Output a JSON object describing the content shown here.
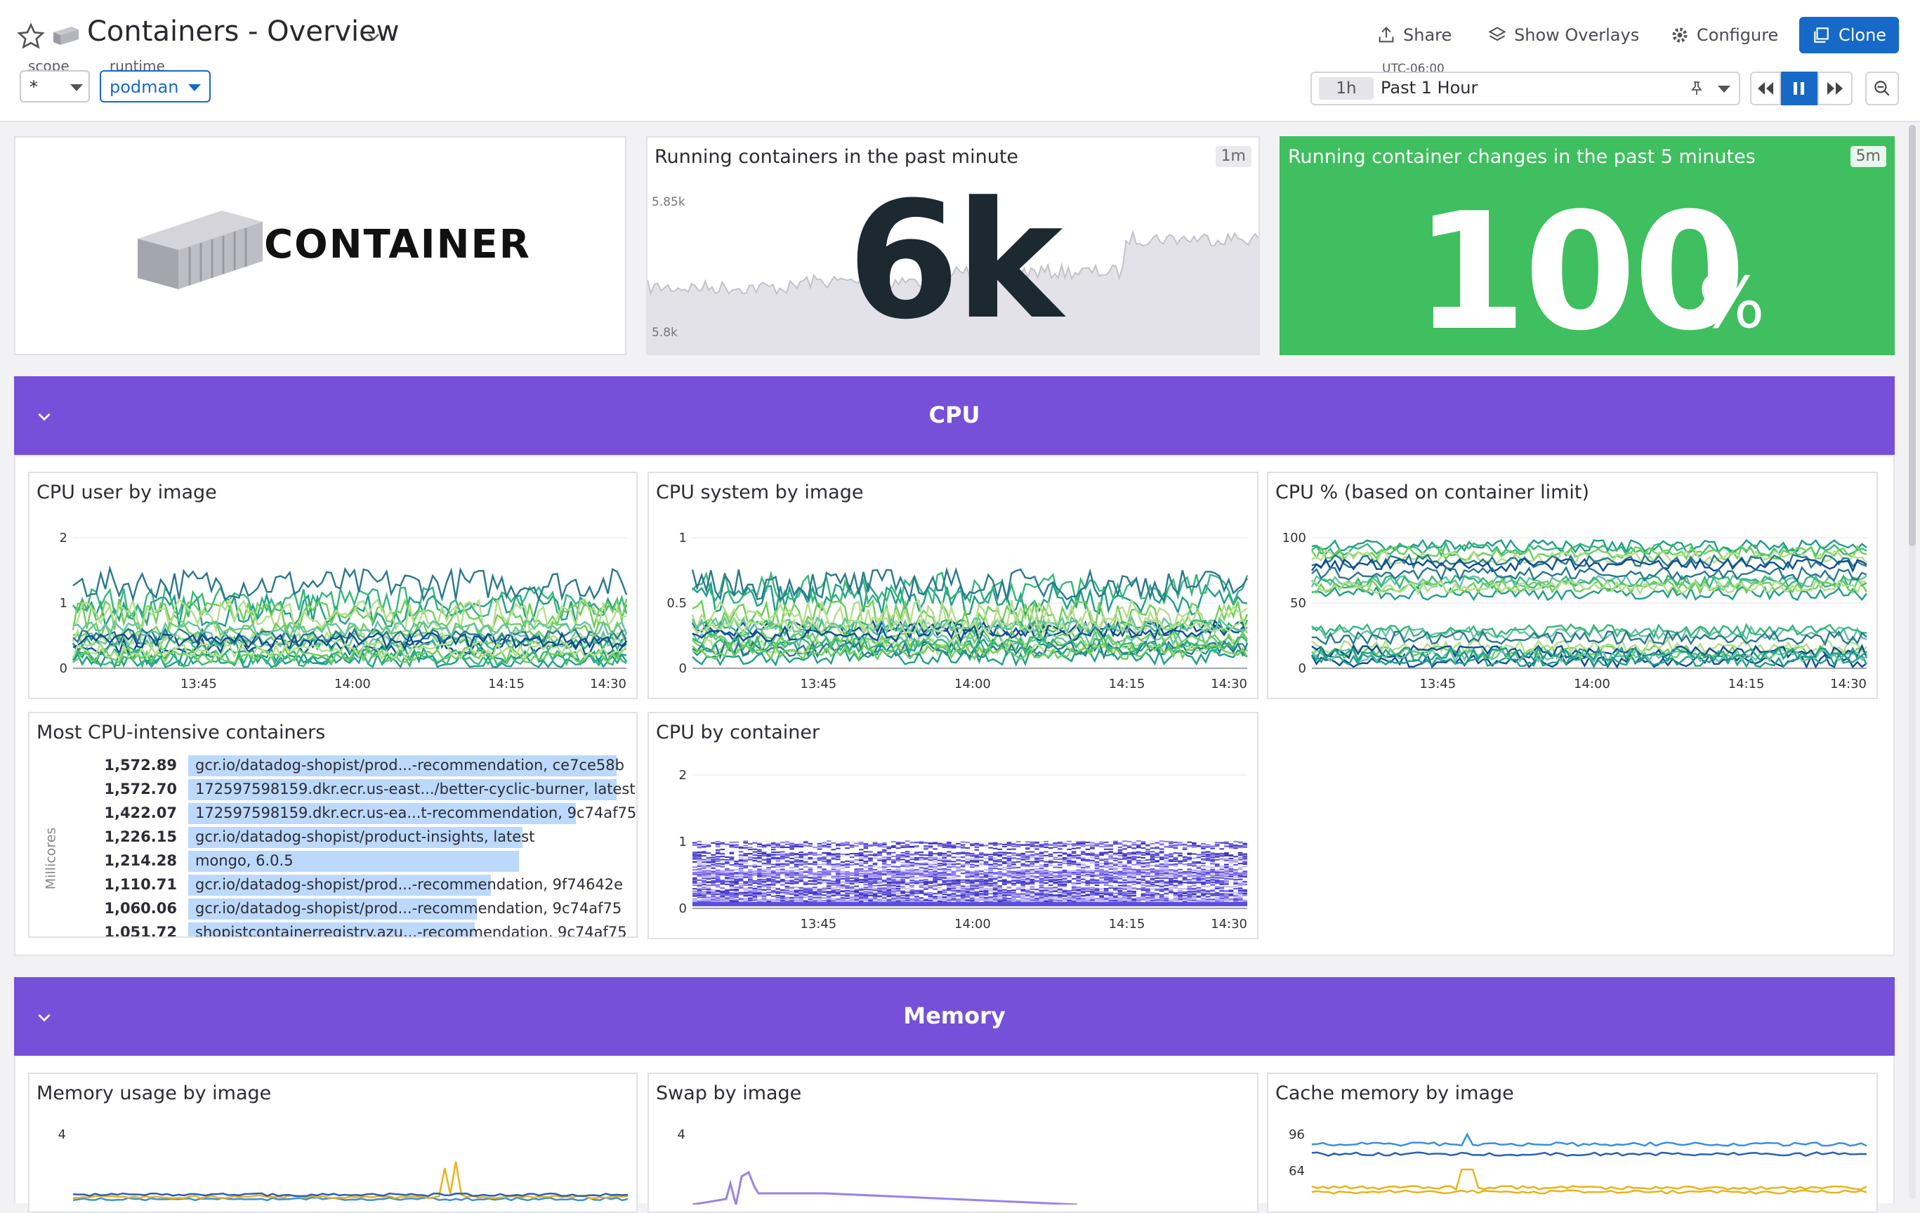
{
  "header": {
    "title": "Containers - Overview",
    "share_label": "Share",
    "overlays_label": "Show Overlays",
    "configure_label": "Configure",
    "clone_label": "Clone"
  },
  "template_vars": [
    {
      "name": "scope",
      "value": "*"
    },
    {
      "name": "runtime",
      "value": "podman"
    }
  ],
  "time": {
    "timezone": "UTC-06:00",
    "short": "1h",
    "range": "Past 1 Hour"
  },
  "logo": {
    "text": "CONTAINER"
  },
  "running_containers": {
    "title": "Running containers in the past minute",
    "badge": "1m",
    "value": "6k",
    "y_top": "5.85k",
    "y_bottom": "5.8k"
  },
  "container_changes": {
    "title": "Running container changes in the past 5 minutes",
    "badge": "5m",
    "value": "100",
    "unit": "%",
    "color": "#3fbf5f"
  },
  "sections": {
    "cpu": "CPU",
    "memory": "Memory",
    "color": "#7650d9"
  },
  "widgets": {
    "cpu_user": "CPU user by image",
    "cpu_system": "CPU system by image",
    "cpu_pct": "CPU % (based on container limit)",
    "top_cpu": "Most CPU-intensive containers",
    "top_cpu_axis": "Millicores",
    "cpu_container": "CPU by container",
    "mem_usage": "Memory usage by image",
    "swap": "Swap by image",
    "cache": "Cache memory by image"
  },
  "time_ticks": [
    "13:45",
    "14:00",
    "14:15",
    "14:30"
  ],
  "chart_data": [
    {
      "type": "line",
      "title": "CPU user by image",
      "y_ticks": [
        "0",
        "1",
        "2"
      ],
      "ylim": [
        0,
        2
      ]
    },
    {
      "type": "line",
      "title": "CPU system by image",
      "y_ticks": [
        "0",
        "0.5",
        "1"
      ],
      "ylim": [
        0,
        1
      ]
    },
    {
      "type": "line",
      "title": "CPU % (based on container limit)",
      "y_ticks": [
        "0",
        "50",
        "100"
      ],
      "ylim": [
        0,
        100
      ]
    },
    {
      "type": "line",
      "title": "CPU by container",
      "y_ticks": [
        "0",
        "1",
        "2"
      ],
      "ylim": [
        0,
        2
      ]
    },
    {
      "type": "bar",
      "title": "Most CPU-intensive containers",
      "ylabel": "Millicores",
      "rows": [
        {
          "label": "gcr.io/datadog-shopist/prod...-recommendation, ce7ce58b",
          "value": 1572.89,
          "display": "1,572.89"
        },
        {
          "label": "172597598159.dkr.ecr.us-east.../better-cyclic-burner, latest",
          "value": 1572.7,
          "display": "1,572.70"
        },
        {
          "label": "172597598159.dkr.ecr.us-ea...t-recommendation, 9c74af75",
          "value": 1422.07,
          "display": "1,422.07"
        },
        {
          "label": "gcr.io/datadog-shopist/product-insights, latest",
          "value": 1226.15,
          "display": "1,226.15"
        },
        {
          "label": "mongo, 6.0.5",
          "value": 1214.28,
          "display": "1,214.28"
        },
        {
          "label": "gcr.io/datadog-shopist/prod...-recommendation, 9f74642e",
          "value": 1110.71,
          "display": "1,110.71"
        },
        {
          "label": "gcr.io/datadog-shopist/prod...-recommendation, 9c74af75",
          "value": 1060.06,
          "display": "1,060.06"
        },
        {
          "label": "shopistcontainerregistry.azu...-recommendation, 9c74af75",
          "value": 1051.72,
          "display": "1,051.72"
        }
      ]
    },
    {
      "type": "line",
      "title": "Memory usage by image",
      "y_ticks": [
        "4"
      ]
    },
    {
      "type": "line",
      "title": "Swap by image",
      "y_ticks": [
        "4"
      ]
    },
    {
      "type": "line",
      "title": "Cache memory by image",
      "y_ticks": [
        "96",
        "64"
      ]
    }
  ],
  "palette": {
    "greens": [
      "#1f9e89",
      "#35b779",
      "#6ece58",
      "#b5de8b",
      "#2a788e",
      "#0e4d92",
      "#66c2a4"
    ],
    "purples": [
      "#5b4fe0",
      "#8f7cf0",
      "#3e36b8",
      "#c1b6fa"
    ],
    "mem": [
      "#3a8fe0",
      "#e8b31b",
      "#2b5fb8"
    ],
    "swap": "#9b82ea"
  }
}
